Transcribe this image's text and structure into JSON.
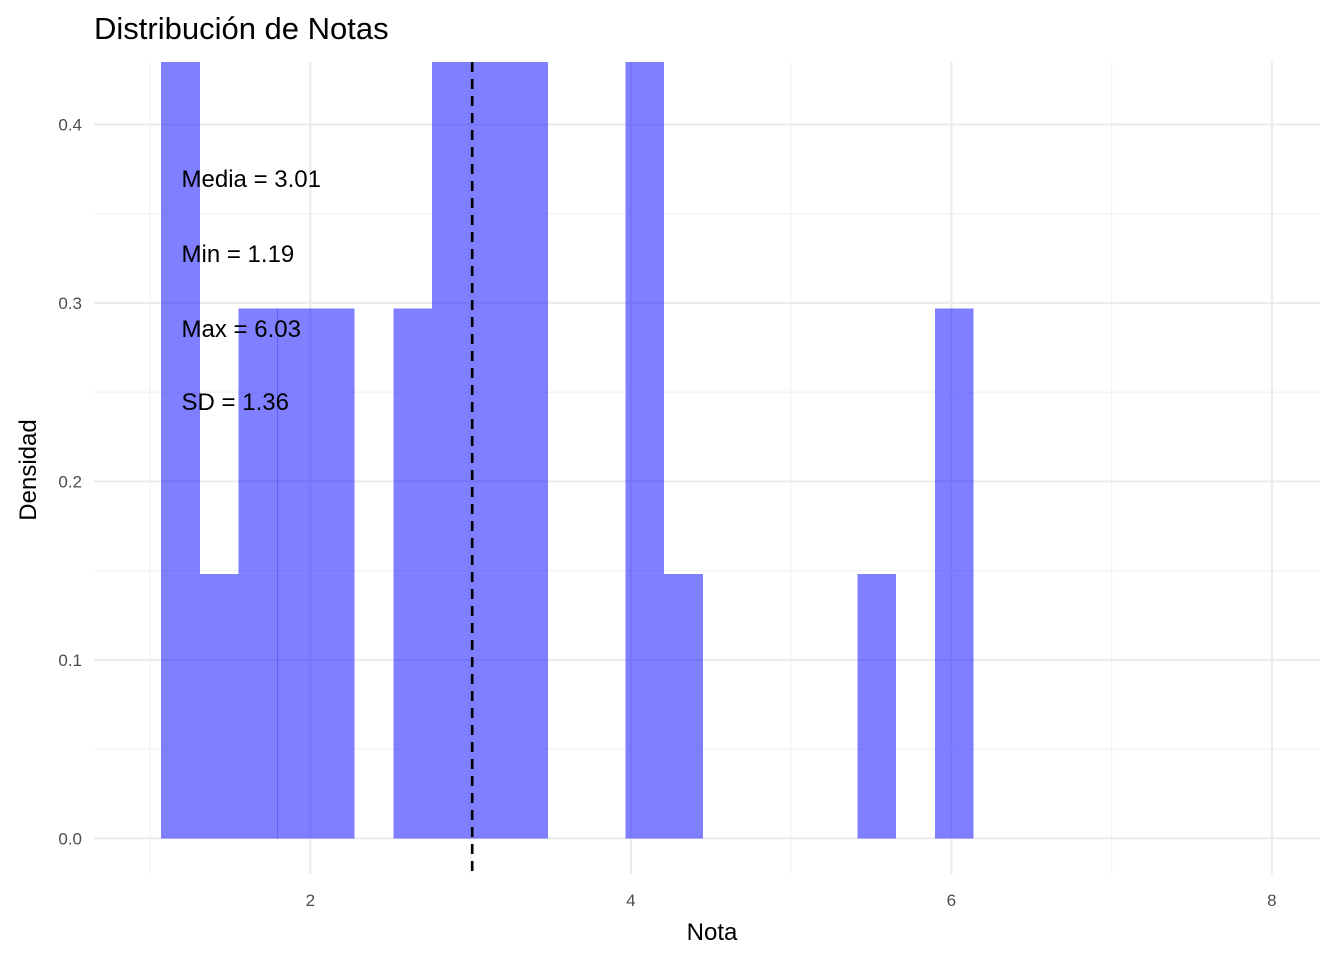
{
  "chart_data": {
    "type": "bar",
    "title": "Distribución de Notas",
    "xlabel": "Nota",
    "ylabel": "Densidad",
    "xlim": [
      0.65,
      8.3
    ],
    "ylim": [
      -0.02,
      0.435
    ],
    "x_ticks": [
      {
        "value": 2,
        "label": "2"
      },
      {
        "value": 4,
        "label": "4"
      },
      {
        "value": 6,
        "label": "6"
      },
      {
        "value": 8,
        "label": "8"
      }
    ],
    "x_minor": [
      1,
      3,
      5,
      7
    ],
    "y_ticks": [
      {
        "value": 0.0,
        "label": "0.0"
      },
      {
        "value": 0.1,
        "label": "0.1"
      },
      {
        "value": 0.2,
        "label": "0.2"
      },
      {
        "value": 0.3,
        "label": "0.3"
      },
      {
        "value": 0.4,
        "label": "0.4"
      }
    ],
    "y_minor": [
      0.05,
      0.15,
      0.25,
      0.35
    ],
    "bin_width": 0.2413,
    "bars": [
      {
        "x": 1.19,
        "density": 0.445
      },
      {
        "x": 1.431,
        "density": 0.148
      },
      {
        "x": 1.673,
        "density": 0.297
      },
      {
        "x": 1.914,
        "density": 0.297
      },
      {
        "x": 2.155,
        "density": 0.297
      },
      {
        "x": 2.397,
        "density": 0.0
      },
      {
        "x": 2.638,
        "density": 0.297
      },
      {
        "x": 2.879,
        "density": 0.445
      },
      {
        "x": 3.121,
        "density": 0.445
      },
      {
        "x": 3.362,
        "density": 0.445
      },
      {
        "x": 3.604,
        "density": 0.0
      },
      {
        "x": 3.845,
        "density": 0.0
      },
      {
        "x": 4.086,
        "density": 0.445
      },
      {
        "x": 4.328,
        "density": 0.148
      },
      {
        "x": 4.569,
        "density": 0.0
      },
      {
        "x": 4.81,
        "density": 0.0
      },
      {
        "x": 5.052,
        "density": 0.0
      },
      {
        "x": 5.293,
        "density": 0.0
      },
      {
        "x": 5.534,
        "density": 0.148
      },
      {
        "x": 5.776,
        "density": 0.0
      },
      {
        "x": 6.017,
        "density": 0.297
      }
    ],
    "bar_color": "#0000ff",
    "bar_opacity": 0.5,
    "mean_line": {
      "x": 3.01,
      "color": "#000000",
      "style": "dashed"
    },
    "annotations": [
      "Media = 3.01",
      "Min = 1.19",
      "Max = 6.03",
      "SD = 1.36"
    ],
    "annotation_anchor": {
      "x": 1.19,
      "y": [
        0.37,
        0.328,
        0.286,
        0.245
      ]
    },
    "grid": true,
    "legend": "none"
  }
}
